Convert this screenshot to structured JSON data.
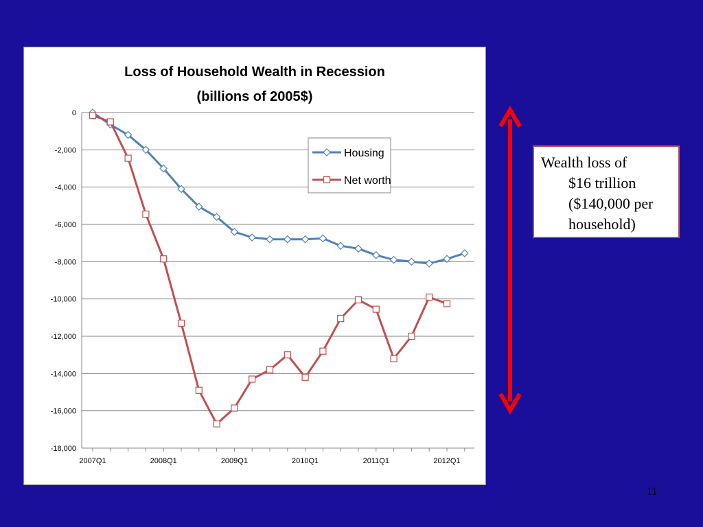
{
  "chart_data": {
    "type": "line",
    "title": "Loss of Household Wealth in Recession",
    "subtitle": "(billions of 2005$)",
    "xlabel": "",
    "ylabel": "",
    "ylim": [
      -18000,
      0
    ],
    "y_ticks": [
      0,
      -2000,
      -4000,
      -6000,
      -8000,
      -10000,
      -12000,
      -14000,
      -16000,
      -18000
    ],
    "y_tick_labels": [
      "0",
      "-2,000",
      "-4,000",
      "-6,000",
      "-8,000",
      "-10,000",
      "-12,000",
      "-14,000",
      "-16,000",
      "-18,000"
    ],
    "x_tick_labels": [
      "2007Q1",
      "2008Q1",
      "2009Q1",
      "2010Q1",
      "2011Q1",
      "2012Q1"
    ],
    "x_label_every": 4,
    "categories": [
      "2007Q1",
      "2007Q2",
      "2007Q3",
      "2007Q4",
      "2008Q1",
      "2008Q2",
      "2008Q3",
      "2008Q4",
      "2009Q1",
      "2009Q2",
      "2009Q3",
      "2009Q4",
      "2010Q1",
      "2010Q2",
      "2010Q3",
      "2010Q4",
      "2011Q1",
      "2011Q2",
      "2011Q3",
      "2011Q4",
      "2012Q1",
      "2012Q2"
    ],
    "grid": "horizontal",
    "legend_position": "top-right",
    "series": [
      {
        "name": "Housing",
        "color": "#4f81bd",
        "marker": "diamond",
        "values": [
          0,
          -650,
          -1200,
          -2000,
          -3000,
          -4100,
          -5050,
          -5600,
          -6400,
          -6700,
          -6800,
          -6800,
          -6800,
          -6750,
          -7150,
          -7300,
          -7650,
          -7900,
          -8000,
          -8100,
          -7850,
          -7550
        ]
      },
      {
        "name": "Net worth",
        "color": "#c0504d",
        "marker": "square",
        "values": [
          -150,
          -500,
          -2450,
          -5450,
          -7850,
          -11300,
          -14900,
          -16700,
          -15850,
          -14300,
          -13800,
          -13000,
          -14200,
          -12800,
          -11050,
          -10050,
          -10550,
          -13200,
          -12000,
          -9900,
          -10250,
          null
        ]
      }
    ]
  },
  "callout": {
    "line1": "Wealth loss of",
    "line2": "$16 trillion",
    "line3": "($140,000 per",
    "line4": "household)"
  },
  "arrow": {
    "color": "#ff0000"
  },
  "page_number": "11"
}
